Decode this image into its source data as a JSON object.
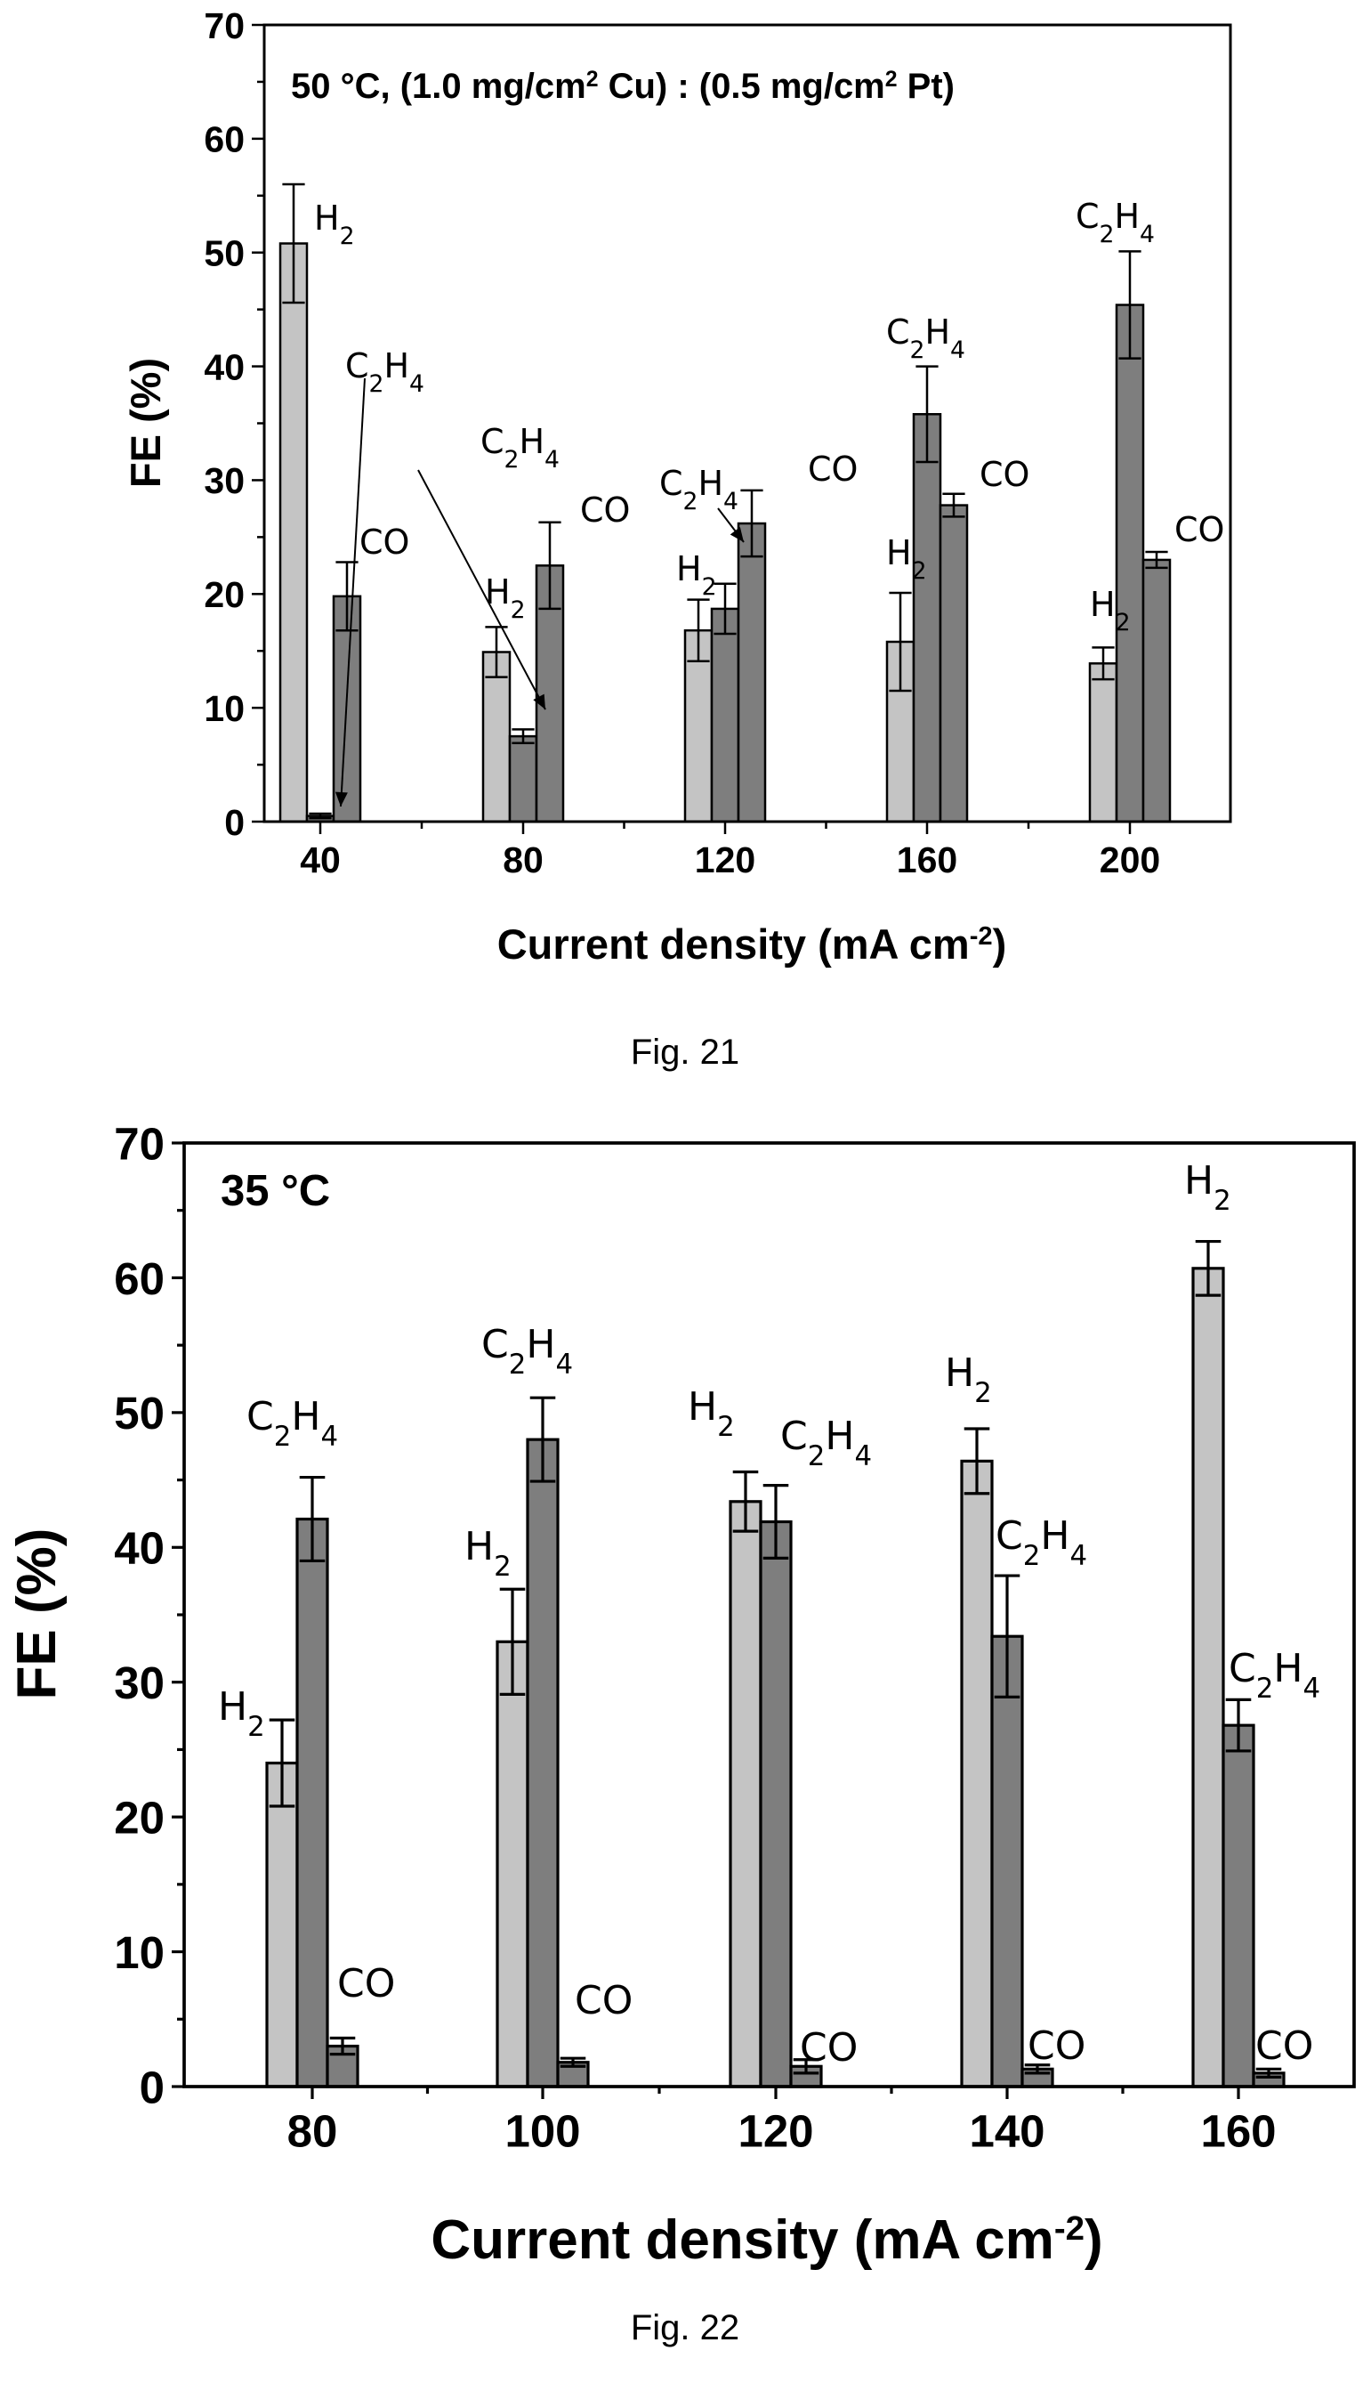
{
  "colors": {
    "H2": "#c4c4c4",
    "C2H4": "#7e7e7e",
    "CO": "#7e7e7e"
  },
  "chart_data": [
    {
      "type": "bar",
      "caption": "Fig. 21",
      "title_parts": {
        "t1": "50 °C, (1.0 mg/cm",
        "s1": "2",
        "t2": " Cu) : (0.5 mg/cm",
        "s2": "2",
        "t3": " Pt)"
      },
      "xlabel": "Current density (mA cm",
      "xlabel_sup": "-2",
      "xlabel_end": ")",
      "ylabel": "FE (%)",
      "ylim": [
        0,
        70
      ],
      "yticks": [
        0,
        10,
        20,
        30,
        40,
        50,
        60,
        70
      ],
      "categories": [
        "40",
        "80",
        "120",
        "160",
        "200"
      ],
      "series": [
        {
          "key": "H2",
          "values": [
            50.8,
            14.9,
            16.8,
            15.8,
            13.9
          ],
          "errors": [
            5.2,
            2.2,
            2.7,
            4.3,
            1.4
          ]
        },
        {
          "key": "C2H4",
          "values": [
            0.5,
            7.5,
            18.7,
            35.8,
            45.4
          ],
          "errors": [
            0.2,
            0.6,
            2.2,
            4.2,
            4.7
          ]
        },
        {
          "key": "CO",
          "values": [
            19.8,
            22.5,
            26.2,
            27.8,
            23.0
          ],
          "errors": [
            3.0,
            3.8,
            2.9,
            1.0,
            0.7
          ]
        }
      ],
      "annotations": [
        {
          "mol": "H2",
          "near": "40",
          "s": "H2"
        },
        {
          "mol": "C2H4",
          "near": "40",
          "s": "C2H4"
        },
        {
          "mol": "CO",
          "near": "40",
          "s": "CO"
        },
        {
          "mol": "C2H4",
          "near": "80",
          "s": "C2H4"
        },
        {
          "mol": "H2",
          "near": "80",
          "s": "H2"
        },
        {
          "mol": "CO",
          "near": "80",
          "s": "CO"
        },
        {
          "mol": "C2H4",
          "near": "120",
          "s": "C2H4"
        },
        {
          "mol": "CO",
          "near": "120",
          "s": "CO"
        },
        {
          "mol": "H2",
          "near": "120",
          "s": "H2"
        },
        {
          "mol": "C2H4",
          "near": "160",
          "s": "C2H4"
        },
        {
          "mol": "CO",
          "near": "160",
          "s": "CO"
        },
        {
          "mol": "H2",
          "near": "160",
          "s": "H2"
        },
        {
          "mol": "C2H4",
          "near": "200",
          "s": "C2H4"
        },
        {
          "mol": "CO",
          "near": "200",
          "s": "CO"
        },
        {
          "mol": "H2",
          "near": "200",
          "s": "H2"
        }
      ]
    },
    {
      "type": "bar",
      "caption": "Fig. 22",
      "title_parts": {
        "t1": "35 °C"
      },
      "xlabel": "Current density (mA cm",
      "xlabel_sup": "-2",
      "xlabel_end": ")",
      "ylabel": "FE (%)",
      "ylim": [
        0,
        70
      ],
      "yticks": [
        0,
        10,
        20,
        30,
        40,
        50,
        60,
        70
      ],
      "categories": [
        "80",
        "100",
        "120",
        "140",
        "160"
      ],
      "series": [
        {
          "key": "H2",
          "values": [
            24.0,
            33.0,
            43.4,
            46.4,
            60.7
          ],
          "errors": [
            3.2,
            3.9,
            2.2,
            2.4,
            2.0
          ]
        },
        {
          "key": "C2H4",
          "values": [
            42.1,
            48.0,
            41.9,
            33.4,
            26.8
          ],
          "errors": [
            3.1,
            3.1,
            2.7,
            4.5,
            1.9
          ]
        },
        {
          "key": "CO",
          "values": [
            3.0,
            1.8,
            1.5,
            1.3,
            1.0
          ],
          "errors": [
            0.6,
            0.3,
            0.5,
            0.3,
            0.3
          ]
        }
      ],
      "annotations": [
        {
          "mol": "C2H4",
          "near": "80",
          "s": "C2H4"
        },
        {
          "mol": "H2",
          "near": "80",
          "s": "H2"
        },
        {
          "mol": "CO",
          "near": "80",
          "s": "CO"
        },
        {
          "mol": "C2H4",
          "near": "100",
          "s": "C2H4"
        },
        {
          "mol": "H2",
          "near": "100",
          "s": "H2"
        },
        {
          "mol": "CO",
          "near": "100",
          "s": "CO"
        },
        {
          "mol": "H2",
          "near": "120",
          "s": "H2"
        },
        {
          "mol": "C2H4",
          "near": "120",
          "s": "C2H4"
        },
        {
          "mol": "CO",
          "near": "120",
          "s": "CO"
        },
        {
          "mol": "H2",
          "near": "140",
          "s": "H2"
        },
        {
          "mol": "C2H4",
          "near": "140",
          "s": "C2H4"
        },
        {
          "mol": "CO",
          "near": "140",
          "s": "CO"
        },
        {
          "mol": "H2",
          "near": "160",
          "s": "H2"
        },
        {
          "mol": "C2H4",
          "near": "160",
          "s": "C2H4"
        },
        {
          "mol": "CO",
          "near": "160",
          "s": "CO"
        }
      ]
    }
  ]
}
